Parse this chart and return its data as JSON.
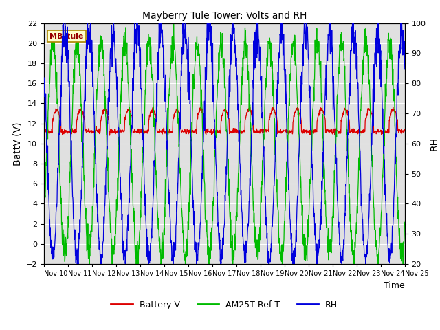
{
  "title": "Mayberry Tule Tower: Volts and RH",
  "xlabel": "Time",
  "ylabel_left": "BattV (V)",
  "ylabel_right": "RH",
  "station_label": "MB_tule",
  "ylim_left": [
    -2,
    22
  ],
  "ylim_right": [
    20,
    100
  ],
  "yticks_left": [
    -2,
    0,
    2,
    4,
    6,
    8,
    10,
    12,
    14,
    16,
    18,
    20,
    22
  ],
  "yticks_right": [
    20,
    30,
    40,
    50,
    60,
    70,
    80,
    90,
    100
  ],
  "xstart": 10,
  "xend": 25,
  "xtick_labels": [
    "Nov 10",
    "Nov 11",
    "Nov 12",
    "Nov 13",
    "Nov 14",
    "Nov 15",
    "Nov 16",
    "Nov 17",
    "Nov 18",
    "Nov 19",
    "Nov 20",
    "Nov 21",
    "Nov 22",
    "Nov 23",
    "Nov 24",
    "Nov 25"
  ],
  "bg_color": "#e0e0e0",
  "grid_color": "#ffffff",
  "battery_color": "#dd0000",
  "am25t_color": "#00bb00",
  "rh_color": "#0000dd",
  "legend_items": [
    "Battery V",
    "AM25T Ref T",
    "RH"
  ],
  "legend_colors": [
    "#dd0000",
    "#00bb00",
    "#0000dd"
  ],
  "seed": 42,
  "figsize": [
    6.4,
    4.8
  ],
  "dpi": 100
}
